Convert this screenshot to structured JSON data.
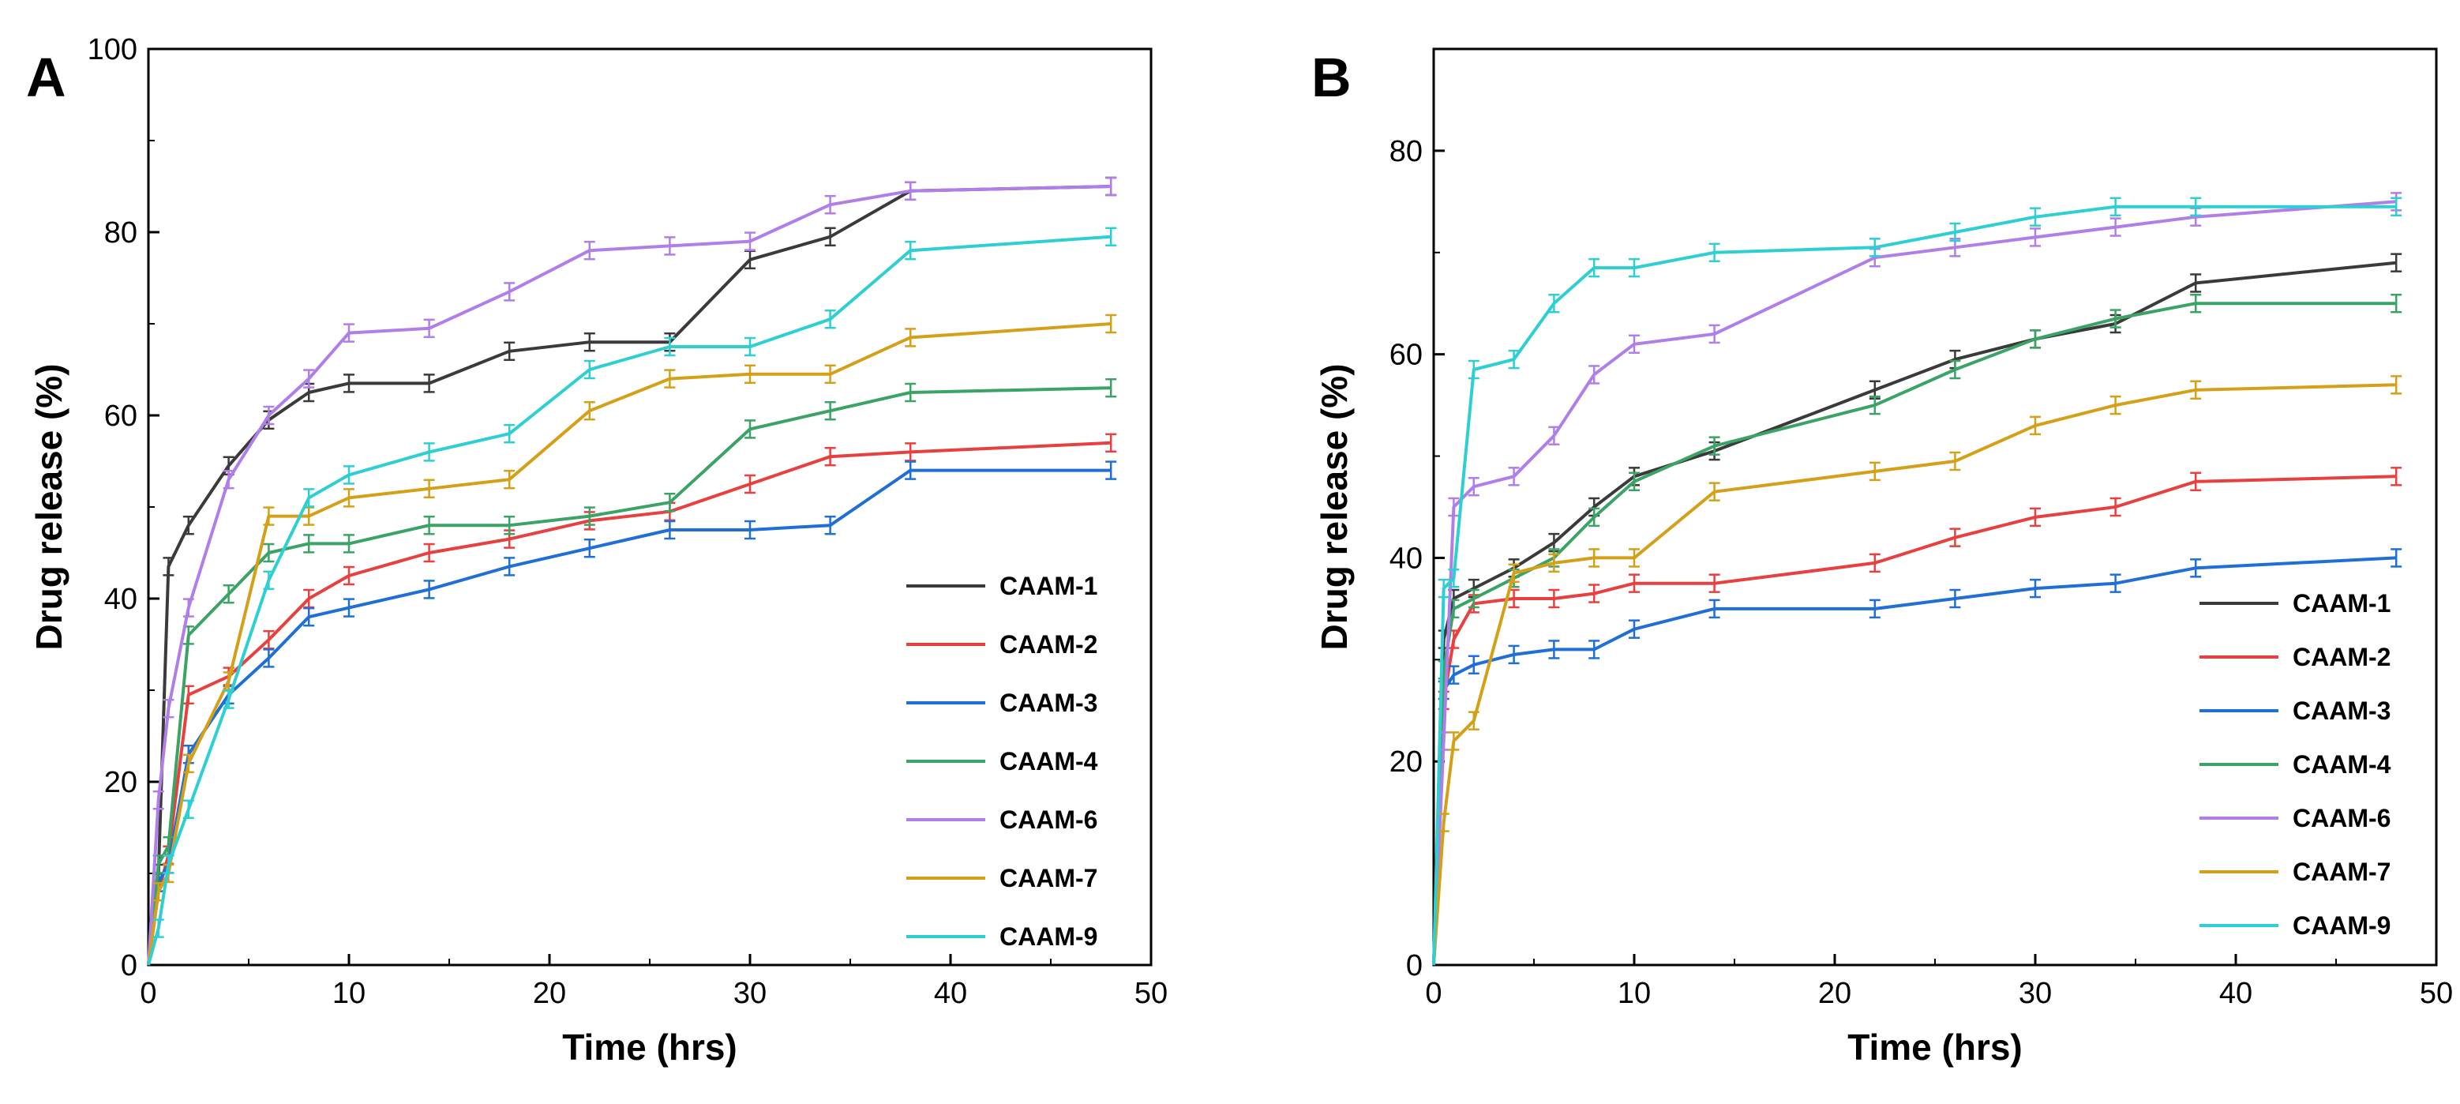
{
  "chart_data": [
    {
      "type": "line",
      "panel_label": "A",
      "title": "",
      "xlabel": "Time (hrs)",
      "ylabel": "Drug release (%)",
      "xlim": [
        0,
        50
      ],
      "ylim": [
        0,
        100
      ],
      "xticks": [
        0,
        10,
        20,
        30,
        40,
        50
      ],
      "yticks": [
        0,
        20,
        40,
        60,
        80,
        100
      ],
      "legend_position": "bottom-right",
      "grid": false,
      "series": [
        {
          "name": "CAAM-1",
          "color": "#3a3a3a",
          "x": [
            0,
            0.5,
            1,
            2,
            4,
            6,
            8,
            10,
            14,
            18,
            22,
            26,
            30,
            34,
            38,
            48
          ],
          "y": [
            0,
            10,
            43.5,
            48,
            54.5,
            59.5,
            62.5,
            63.5,
            63.5,
            67,
            68,
            68,
            77,
            79.5,
            84.5,
            85
          ]
        },
        {
          "name": "CAAM-2",
          "color": "#e8403f",
          "x": [
            0,
            0.5,
            1,
            2,
            4,
            6,
            8,
            10,
            14,
            18,
            22,
            26,
            30,
            34,
            38,
            48
          ],
          "y": [
            0,
            8,
            12,
            29.5,
            31.5,
            35.5,
            40,
            42.5,
            45,
            46.5,
            48.5,
            49.5,
            52.5,
            55.5,
            56,
            57
          ]
        },
        {
          "name": "CAAM-3",
          "color": "#1f6fd6",
          "x": [
            0,
            0.5,
            1,
            2,
            4,
            6,
            8,
            10,
            14,
            18,
            22,
            26,
            30,
            34,
            38,
            48
          ],
          "y": [
            0,
            9,
            11,
            23,
            29.5,
            33.5,
            38,
            39,
            41,
            43.5,
            45.5,
            47.5,
            47.5,
            48,
            54,
            54
          ]
        },
        {
          "name": "CAAM-4",
          "color": "#3aa365",
          "x": [
            0,
            0.5,
            1,
            2,
            4,
            6,
            8,
            10,
            14,
            18,
            22,
            26,
            30,
            34,
            38,
            48
          ],
          "y": [
            0,
            11,
            13,
            36,
            40.5,
            45,
            46,
            46,
            48,
            48,
            49,
            50.5,
            58.5,
            60.5,
            62.5,
            63
          ]
        },
        {
          "name": "CAAM-6",
          "color": "#b07ee8",
          "x": [
            0,
            0.5,
            1,
            2,
            4,
            6,
            8,
            10,
            14,
            18,
            22,
            26,
            30,
            34,
            38,
            48
          ],
          "y": [
            0,
            18,
            28,
            39,
            53,
            60,
            64,
            69,
            69.5,
            73.5,
            78,
            78.5,
            79,
            83,
            84.5,
            85
          ]
        },
        {
          "name": "CAAM-7",
          "color": "#d4a017",
          "x": [
            0,
            0.5,
            1,
            2,
            4,
            6,
            8,
            10,
            14,
            18,
            22,
            26,
            30,
            34,
            38,
            48
          ],
          "y": [
            0,
            8,
            10,
            22,
            31,
            49,
            49,
            51,
            52,
            53,
            60.5,
            64,
            64.5,
            64.5,
            68.5,
            70
          ]
        },
        {
          "name": "CAAM-9",
          "color": "#2ecfd3",
          "x": [
            0,
            0.5,
            1,
            2,
            4,
            6,
            8,
            10,
            14,
            18,
            22,
            26,
            30,
            34,
            38,
            48
          ],
          "y": [
            0,
            4,
            11,
            17,
            29,
            42,
            51,
            53.5,
            56,
            58,
            65,
            67.5,
            67.5,
            70.5,
            78,
            79.5
          ]
        }
      ]
    },
    {
      "type": "line",
      "panel_label": "B",
      "title": "",
      "xlabel": "Time (hrs)",
      "ylabel": "Drug release (%)",
      "xlim": [
        0,
        50
      ],
      "ylim": [
        0,
        90
      ],
      "xticks": [
        0,
        10,
        20,
        30,
        40,
        50
      ],
      "yticks": [
        0,
        20,
        40,
        60,
        80
      ],
      "legend_position": "bottom-right",
      "grid": false,
      "series": [
        {
          "name": "CAAM-1",
          "color": "#3a3a3a",
          "x": [
            0,
            0.5,
            1,
            2,
            4,
            6,
            8,
            10,
            14,
            22,
            26,
            30,
            34,
            38,
            48
          ],
          "y": [
            0,
            32,
            36,
            37,
            39,
            41.5,
            45,
            48,
            50.5,
            56.5,
            59.5,
            61.5,
            63,
            67,
            69
          ]
        },
        {
          "name": "CAAM-2",
          "color": "#e8403f",
          "x": [
            0,
            0.5,
            1,
            2,
            4,
            6,
            8,
            10,
            14,
            22,
            26,
            30,
            34,
            38,
            48
          ],
          "y": [
            0,
            26,
            32,
            35.5,
            36,
            36,
            36.5,
            37.5,
            37.5,
            39.5,
            42,
            44,
            45,
            47.5,
            48
          ]
        },
        {
          "name": "CAAM-3",
          "color": "#1f6fd6",
          "x": [
            0,
            0.5,
            1,
            2,
            4,
            6,
            8,
            10,
            14,
            22,
            26,
            30,
            34,
            38,
            48
          ],
          "y": [
            0,
            27,
            28.5,
            29.5,
            30.5,
            31,
            31,
            33,
            35,
            35,
            36,
            37,
            37.5,
            39,
            40
          ]
        },
        {
          "name": "CAAM-4",
          "color": "#3aa365",
          "x": [
            0,
            0.5,
            1,
            2,
            4,
            6,
            8,
            10,
            14,
            22,
            26,
            30,
            34,
            38,
            48
          ],
          "y": [
            0,
            29,
            35,
            36,
            38,
            40,
            44,
            47.5,
            51,
            55,
            58.5,
            61.5,
            63.5,
            65,
            65
          ]
        },
        {
          "name": "CAAM-6",
          "color": "#b07ee8",
          "x": [
            0,
            0.5,
            1,
            2,
            4,
            6,
            8,
            10,
            14,
            22,
            26,
            30,
            34,
            38,
            48
          ],
          "y": [
            0,
            22,
            45,
            47,
            48,
            52,
            58,
            61,
            62,
            69.5,
            70.5,
            71.5,
            72.5,
            73.5,
            75
          ]
        },
        {
          "name": "CAAM-7",
          "color": "#d4a017",
          "x": [
            0,
            0.5,
            1,
            2,
            4,
            6,
            8,
            10,
            14,
            22,
            26,
            30,
            34,
            38,
            48
          ],
          "y": [
            0,
            14,
            22,
            24,
            38.5,
            39.5,
            40,
            40,
            46.5,
            48.5,
            49.5,
            53,
            55,
            56.5,
            57
          ]
        },
        {
          "name": "CAAM-9",
          "color": "#2ecfd3",
          "x": [
            0,
            0.5,
            1,
            2,
            4,
            6,
            8,
            10,
            14,
            22,
            26,
            30,
            34,
            38,
            48
          ],
          "y": [
            0,
            37,
            38,
            58.5,
            59.5,
            65,
            68.5,
            68.5,
            70,
            70.5,
            72,
            73.5,
            74.5,
            74.5,
            74.5
          ]
        }
      ]
    }
  ]
}
